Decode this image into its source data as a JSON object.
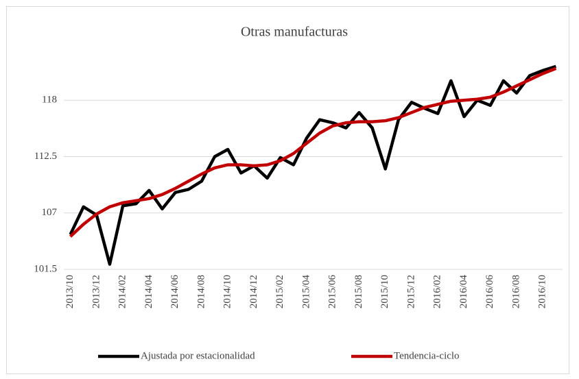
{
  "chart_data": {
    "type": "line",
    "title": "Otras manufacturas",
    "categories": [
      "2013/10",
      null,
      "2013/12",
      null,
      "2014/02",
      null,
      "2014/04",
      null,
      "2014/06",
      null,
      "2014/08",
      null,
      "2014/10",
      null,
      "2014/12",
      null,
      "2015/02",
      null,
      "2015/04",
      null,
      "2015/06",
      null,
      "2015/08",
      null,
      "2015/10",
      null,
      "2015/12",
      null,
      "2016/02",
      null,
      "2016/04",
      null,
      "2016/06",
      null,
      "2016/08",
      null,
      "2016/10",
      null
    ],
    "series": [
      {
        "name": "Ajustada por estacionalidad",
        "color": "#000000",
        "values": [
          104.9,
          107.6,
          106.8,
          102.0,
          107.7,
          107.9,
          109.2,
          107.4,
          109.0,
          109.3,
          110.1,
          112.5,
          113.2,
          110.9,
          111.6,
          110.4,
          112.4,
          111.7,
          114.3,
          116.1,
          115.8,
          115.3,
          116.8,
          115.3,
          111.3,
          116.1,
          117.8,
          117.2,
          116.7,
          119.9,
          116.4,
          118.0,
          117.5,
          119.9,
          118.7,
          120.4,
          120.9,
          121.3
        ]
      },
      {
        "name": "Tendencia-ciclo",
        "color": "#c00000",
        "values": [
          104.7,
          105.9,
          106.9,
          107.6,
          108.0,
          108.2,
          108.4,
          108.8,
          109.4,
          110.1,
          110.8,
          111.4,
          111.7,
          111.7,
          111.6,
          111.7,
          112.1,
          112.8,
          113.8,
          114.8,
          115.5,
          115.8,
          115.9,
          115.9,
          116.0,
          116.3,
          116.8,
          117.3,
          117.6,
          117.9,
          118.0,
          118.1,
          118.3,
          118.8,
          119.4,
          120.0,
          120.6,
          121.1
        ]
      }
    ],
    "ylim": [
      101.5,
      123.5
    ],
    "yticks": [
      101.5,
      107,
      112.5,
      118
    ],
    "grid": true,
    "legend": "bottom"
  }
}
